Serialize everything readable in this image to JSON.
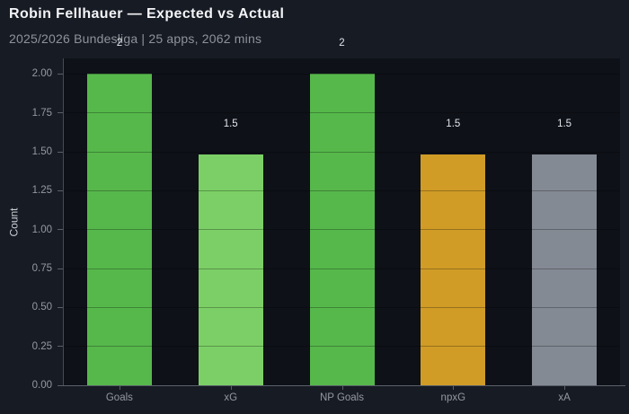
{
  "header": {
    "title": "Robin Fellhauer — Expected vs Actual",
    "subtitle": "2025/2026 Bundesliga | 25 apps, 2062 mins"
  },
  "colors": {
    "page_bg": "#171b24",
    "plot_bg": "#0e1118",
    "title_text": "#f4f5f7",
    "subtitle_text": "#8e939b",
    "tick_label_text": "#9399a2",
    "axis_spine": "#596069",
    "value_label_text": "#e2e5e9",
    "goals_green": "#56b84b",
    "xg_light_green": "#7ccf66",
    "npxg_orange": "#d09c26",
    "xa_gray": "#848a94"
  },
  "chart_data": {
    "type": "bar",
    "title": "Robin Fellhauer — Expected vs Actual",
    "subtitle": "2025/2026 Bundesliga | 25 apps, 2062 mins",
    "categories": [
      "Goals",
      "xG",
      "NP Goals",
      "npxG",
      "xA"
    ],
    "values": [
      2,
      1.48,
      2,
      1.48,
      1.48
    ],
    "value_labels": [
      "2",
      "1.5",
      "2",
      "1.5",
      "1.5"
    ],
    "bar_colors": [
      "#56b84b",
      "#7ccf66",
      "#56b84b",
      "#d09c26",
      "#848a94"
    ],
    "xlabel": "",
    "ylabel": "Count",
    "ylim": [
      0,
      2.1
    ],
    "yticks": [
      0,
      0.25,
      0.5,
      0.75,
      1,
      1.25,
      1.5,
      1.75,
      2
    ],
    "ytick_labels": [
      "0.00",
      "0.25",
      "0.50",
      "0.75",
      "1.00",
      "1.25",
      "1.50",
      "1.75",
      "2.00"
    ],
    "grid": "horizontal-on",
    "legend": "none"
  }
}
